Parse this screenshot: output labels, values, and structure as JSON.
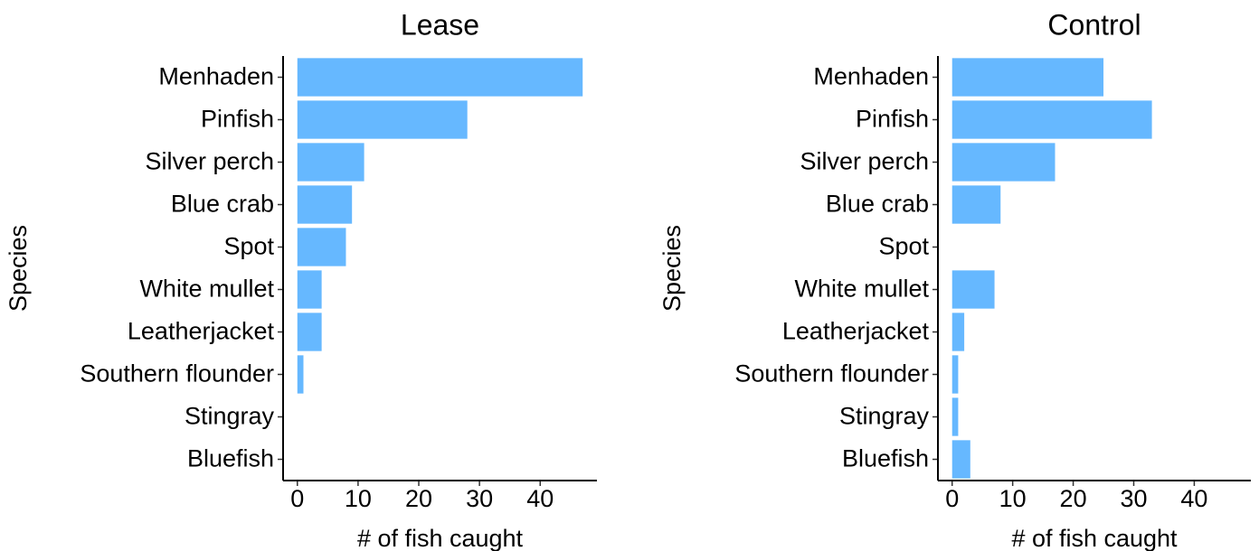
{
  "chart_data": [
    {
      "type": "bar",
      "orientation": "horizontal",
      "title": "Lease",
      "xlabel": "# of fish caught",
      "ylabel": "Species",
      "color": "#66b8ff",
      "categories": [
        "Menhaden",
        "Pinfish",
        "Silver perch",
        "Blue crab",
        "Spot",
        "White mullet",
        "Leatherjacket",
        "Southern flounder",
        "Stingray",
        "Bluefish"
      ],
      "values": [
        47,
        28,
        11,
        9,
        8,
        4,
        4,
        1,
        0,
        0
      ],
      "xlim": [
        -2.35,
        49.35
      ],
      "xticks": [
        0,
        10,
        20,
        30,
        40
      ]
    },
    {
      "type": "bar",
      "orientation": "horizontal",
      "title": "Control",
      "xlabel": "# of fish caught",
      "ylabel": "Species",
      "color": "#66b8ff",
      "categories": [
        "Menhaden",
        "Pinfish",
        "Silver perch",
        "Blue crab",
        "Spot",
        "White mullet",
        "Leatherjacket",
        "Southern flounder",
        "Stingray",
        "Bluefish"
      ],
      "values": [
        25,
        33,
        17,
        8,
        0,
        7,
        2,
        1,
        1,
        3
      ],
      "xlim": [
        -2.35,
        49.35
      ],
      "xticks": [
        0,
        10,
        20,
        30,
        40
      ]
    }
  ]
}
